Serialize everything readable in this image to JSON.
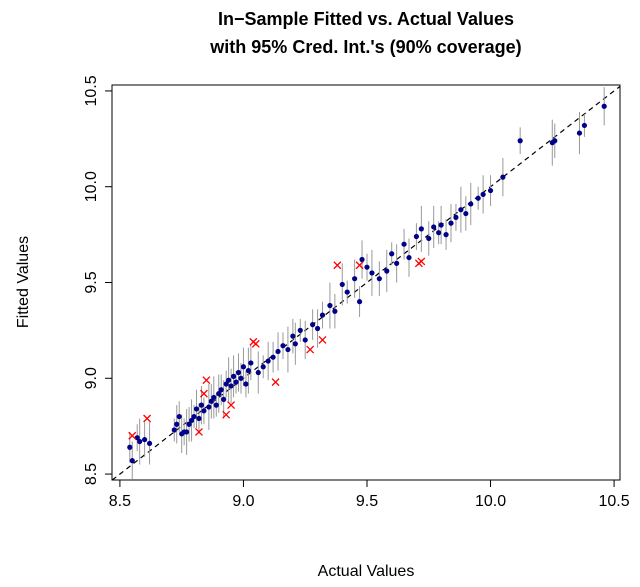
{
  "chart_data": {
    "type": "scatter",
    "title": [
      "In−Sample Fitted vs. Actual Values",
      "with 95% Cred. Int.'s (90% coverage)"
    ],
    "x_label": "Actual Values",
    "y_label": "Fitted Values",
    "xlim": [
      8.468,
      10.524
    ],
    "ylim": [
      8.469,
      10.531
    ],
    "xticks": [
      8.5,
      {
        "value": 9,
        "label": "9.0"
      },
      9.5,
      {
        "value": 10,
        "label": "10.0"
      },
      10.5
    ],
    "yticks": [
      8.5,
      {
        "value": 9,
        "label": "9.0"
      },
      9.5,
      {
        "value": 10,
        "label": "10.0"
      },
      10.5
    ],
    "series": [
      {
        "color": "#00008b",
        "error_color": "#999999",
        "x": [
          8.54,
          8.55,
          8.57,
          8.58,
          8.6,
          8.62,
          8.72,
          8.73,
          8.74,
          8.75,
          8.76,
          8.77,
          8.78,
          8.79,
          8.8,
          8.81,
          8.82,
          8.83,
          8.84,
          8.86,
          8.87,
          8.88,
          8.89,
          8.9,
          8.91,
          8.92,
          8.93,
          8.94,
          8.95,
          8.96,
          8.97,
          8.98,
          8.99,
          9.0,
          9.01,
          9.02,
          9.03,
          9.06,
          9.08,
          9.1,
          9.12,
          9.14,
          9.16,
          9.18,
          9.2,
          9.21,
          9.23,
          9.25,
          9.28,
          9.3,
          9.32,
          9.35,
          9.37,
          9.4,
          9.42,
          9.45,
          9.47,
          9.48,
          9.5,
          9.52,
          9.55,
          9.58,
          9.6,
          9.62,
          9.65,
          9.67,
          9.7,
          9.72,
          9.75,
          9.77,
          9.79,
          9.8,
          9.82,
          9.84,
          9.86,
          9.88,
          9.9,
          9.92,
          9.95,
          9.97,
          10.0,
          10.05,
          10.12,
          10.25,
          10.26,
          10.36,
          10.38,
          10.46
        ],
        "values": [
          8.64,
          8.57,
          8.69,
          8.67,
          8.68,
          8.66,
          8.73,
          8.76,
          8.8,
          8.71,
          8.72,
          8.72,
          8.76,
          8.78,
          8.8,
          8.84,
          8.79,
          8.86,
          8.83,
          8.85,
          8.88,
          8.9,
          8.86,
          8.92,
          8.94,
          8.89,
          8.97,
          8.99,
          8.96,
          9.01,
          8.98,
          9.03,
          9.0,
          9.06,
          8.97,
          9.04,
          9.08,
          9.03,
          9.06,
          9.09,
          9.11,
          9.14,
          9.17,
          9.15,
          9.22,
          9.18,
          9.25,
          9.2,
          9.28,
          9.26,
          9.33,
          9.38,
          9.35,
          9.49,
          9.45,
          9.52,
          9.4,
          9.62,
          9.58,
          9.55,
          9.52,
          9.56,
          9.65,
          9.6,
          9.7,
          9.63,
          9.74,
          9.78,
          9.73,
          9.79,
          9.76,
          9.8,
          9.75,
          9.81,
          9.84,
          9.88,
          9.86,
          9.91,
          9.94,
          9.96,
          9.98,
          10.05,
          10.24,
          10.23,
          10.24,
          10.28,
          10.32,
          10.42
        ],
        "errors": [
          0.08,
          0.1,
          0.07,
          0.12,
          0.09,
          0.11,
          0.06,
          0.1,
          0.08,
          0.1,
          0.07,
          0.12,
          0.09,
          0.11,
          0.06,
          0.1,
          0.08,
          0.1,
          0.07,
          0.12,
          0.09,
          0.11,
          0.06,
          0.1,
          0.08,
          0.1,
          0.07,
          0.12,
          0.09,
          0.11,
          0.06,
          0.1,
          0.08,
          0.1,
          0.07,
          0.12,
          0.09,
          0.11,
          0.06,
          0.1,
          0.08,
          0.1,
          0.07,
          0.12,
          0.09,
          0.11,
          0.06,
          0.1,
          0.08,
          0.1,
          0.07,
          0.12,
          0.09,
          0.11,
          0.06,
          0.1,
          0.08,
          0.1,
          0.07,
          0.12,
          0.09,
          0.11,
          0.06,
          0.1,
          0.08,
          0.1,
          0.07,
          0.12,
          0.09,
          0.11,
          0.06,
          0.1,
          0.08,
          0.1,
          0.07,
          0.12,
          0.09,
          0.11,
          0.06,
          0.1,
          0.08,
          0.1,
          0.07,
          0.12,
          0.09,
          0.11,
          0.06,
          0.1
        ]
      },
      {
        "color": "#ff0000",
        "marker": "x",
        "x": [
          8.55,
          8.61,
          8.82,
          8.85,
          8.84,
          8.93,
          8.95,
          9.04,
          9.05,
          9.13,
          9.27,
          9.32,
          9.38,
          9.47,
          9.71,
          9.72
        ],
        "values": [
          8.7,
          8.79,
          8.72,
          8.99,
          8.92,
          8.81,
          8.86,
          9.19,
          9.18,
          8.98,
          9.15,
          9.2,
          9.59,
          9.59,
          9.6,
          9.61
        ]
      }
    ]
  }
}
